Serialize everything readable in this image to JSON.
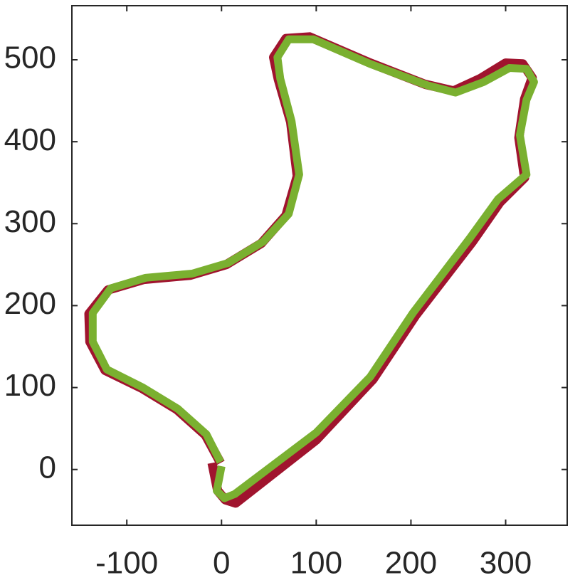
{
  "chart_data": {
    "type": "line",
    "xlim": [
      -158,
      365
    ],
    "ylim": [
      -68,
      566
    ],
    "xticks": [
      -100,
      0,
      100,
      200,
      300
    ],
    "yticks": [
      0,
      100,
      200,
      300,
      400,
      500
    ],
    "grid": false,
    "series": [
      {
        "color": "#a0142e",
        "x": [
          -10,
          -4,
          4,
          15,
          100,
          160,
          205,
          265,
          294,
          320,
          314,
          320,
          328,
          318,
          300,
          273,
          245,
          215,
          155,
          93,
          68,
          55,
          60,
          73,
          80,
          68,
          42,
          5,
          -33,
          -82,
          -120,
          -140,
          -139,
          -123,
          -84,
          -47,
          -17,
          -1
        ],
        "y": [
          8,
          -26,
          -37,
          -41,
          36,
          110,
          188,
          278,
          326,
          356,
          405,
          452,
          478,
          495,
          496,
          477,
          462,
          470,
          497,
          528,
          526,
          503,
          476,
          424,
          358,
          310,
          276,
          250,
          237,
          232,
          219,
          190,
          156,
          121,
          99,
          73,
          42,
          8
        ]
      },
      {
        "color": "#7ab030",
        "x": [
          0,
          -5,
          3,
          14,
          100,
          157,
          202,
          262,
          292,
          322,
          315,
          322,
          330,
          322,
          304,
          277,
          247,
          217,
          157,
          97,
          71,
          59,
          62,
          74,
          82,
          71,
          44,
          7,
          -31,
          -80,
          -117,
          -136,
          -136,
          -121,
          -83,
          -46,
          -16,
          -1
        ],
        "y": [
          4,
          -26,
          -35,
          -30,
          45,
          113,
          191,
          282,
          330,
          360,
          408,
          451,
          473,
          489,
          490,
          473,
          460,
          469,
          495,
          525,
          525,
          503,
          477,
          425,
          360,
          312,
          278,
          252,
          239,
          234,
          221,
          191,
          156,
          122,
          100,
          74,
          43,
          9
        ]
      }
    ]
  }
}
